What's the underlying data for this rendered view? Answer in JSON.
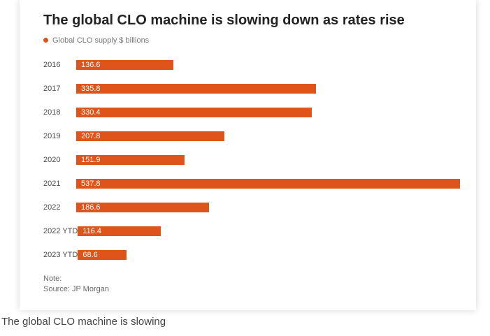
{
  "chart_data": {
    "type": "bar",
    "orientation": "horizontal",
    "title": "The global CLO machine is slowing down as rates rise",
    "legend_label": "Global CLO supply $ billions",
    "categories": [
      "2016",
      "2017",
      "2018",
      "2019",
      "2020",
      "2021",
      "2022",
      "2022 YTD",
      "2023 YTD"
    ],
    "values": [
      136.6,
      335.8,
      330.4,
      207.8,
      151.9,
      537.8,
      186.6,
      116.4,
      68.6
    ],
    "value_labels": [
      "136.6",
      "335.8",
      "330.4",
      "207.8",
      "151.9",
      "537.8",
      "186.6",
      "116.4",
      "68.6"
    ],
    "xlim": [
      0,
      537.8
    ],
    "bar_color": "#de541b",
    "grid": false,
    "legend_position": "top-left",
    "note": "Note:",
    "source": "Source: JP Morgan"
  },
  "caption": "The global CLO machine is slowing",
  "colors": {
    "accent": "#de541b",
    "title_text": "#232323",
    "category_text": "#4d4d4d",
    "muted_text": "#767676"
  }
}
